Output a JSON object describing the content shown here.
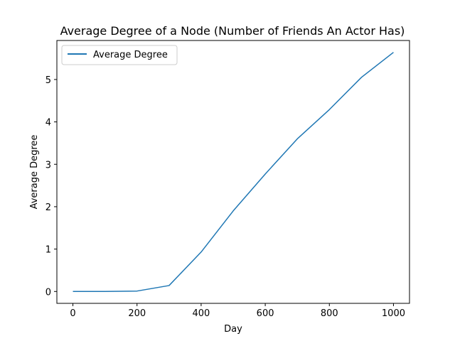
{
  "chart_data": {
    "type": "line",
    "title": "Average Degree of a Node (Number of Friends An Actor Has)",
    "xlabel": "Day",
    "ylabel": "Average Degree",
    "xlim": [
      -50,
      1050
    ],
    "ylim": [
      -0.28,
      5.92
    ],
    "xticks": [
      0,
      200,
      400,
      600,
      800,
      1000
    ],
    "yticks": [
      0,
      1,
      2,
      3,
      4,
      5
    ],
    "grid": false,
    "legend_position": "upper-left",
    "series": [
      {
        "name": "Average Degree",
        "color": "#1f77b4",
        "x": [
          0,
          100,
          200,
          300,
          400,
          500,
          600,
          700,
          800,
          900,
          1000
        ],
        "y": [
          0.0,
          0.0,
          0.01,
          0.14,
          0.93,
          1.9,
          2.77,
          3.6,
          4.29,
          5.05,
          5.64
        ]
      }
    ]
  }
}
